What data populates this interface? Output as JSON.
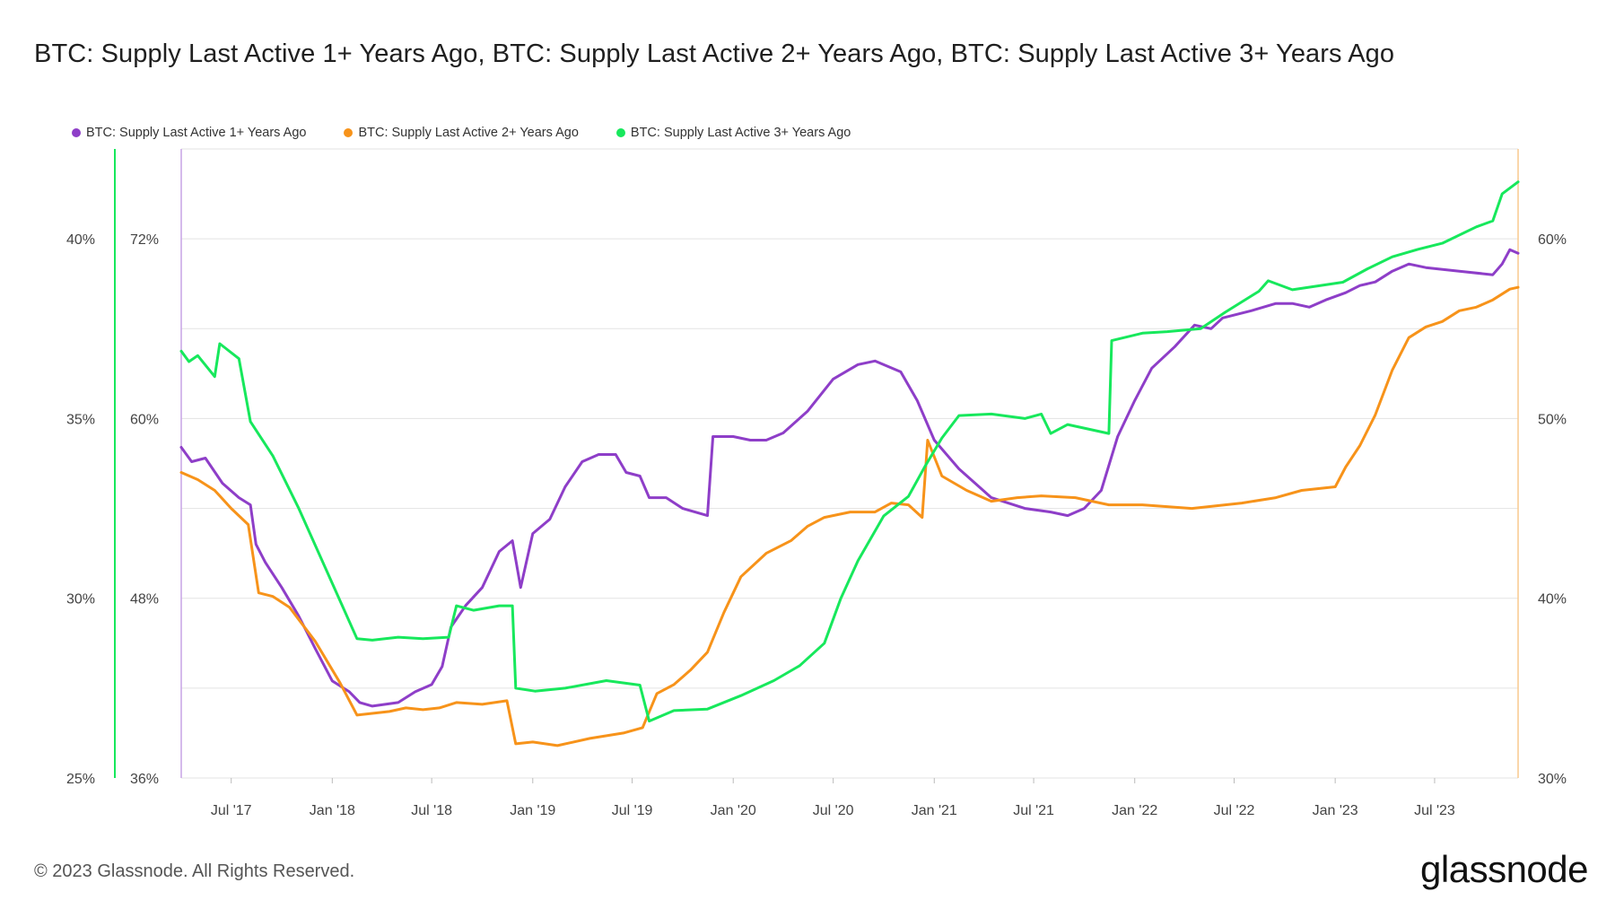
{
  "title": "BTC: Supply Last Active 1+ Years Ago, BTC: Supply Last Active 2+ Years Ago, BTC: Supply Last Active 3+ Years Ago",
  "footer": "© 2023 Glassnode. All Rights Reserved.",
  "logo": "glassnode",
  "chart_data": {
    "type": "line",
    "grid": true,
    "legend_position": "top-left",
    "x_tick_labels": [
      "Jul '17",
      "Jan '18",
      "Jul '18",
      "Jan '19",
      "Jul '19",
      "Jan '20",
      "Jul '20",
      "Jan '21",
      "Jul '21",
      "Jan '22",
      "Jul '22",
      "Jan '23",
      "Jul '23"
    ],
    "x_range": [
      "2017-04-01",
      "2023-11-30"
    ],
    "axes": {
      "left_outer": {
        "series": "BTC: Supply Last Active 1+ Years Ago",
        "ticks": [
          "25%",
          "30%",
          "35%",
          "40%"
        ],
        "range": [
          25,
          42.5
        ],
        "color": "#8e3ec8"
      },
      "left_inner": {
        "series": "BTC: Supply Last Active 3+ Years Ago",
        "ticks": [
          "36%",
          "48%",
          "60%",
          "72%"
        ],
        "range": [
          36,
          78
        ],
        "color": "#17e85c"
      },
      "right": {
        "series": "BTC: Supply Last Active 2+ Years Ago",
        "ticks": [
          "30%",
          "40%",
          "50%",
          "60%"
        ],
        "range": [
          30,
          65
        ],
        "color": "#f7931a"
      }
    },
    "series": [
      {
        "name": "BTC: Supply Last Active 1+ Years Ago",
        "color": "#8e3ec8",
        "axis": "left_outer",
        "points": [
          [
            "2017-04-01",
            34.2
          ],
          [
            "2017-04-20",
            33.8
          ],
          [
            "2017-05-15",
            33.9
          ],
          [
            "2017-06-15",
            33.2
          ],
          [
            "2017-07-15",
            32.8
          ],
          [
            "2017-08-05",
            32.6
          ],
          [
            "2017-08-15",
            31.5
          ],
          [
            "2017-09-01",
            31.0
          ],
          [
            "2017-10-01",
            30.3
          ],
          [
            "2017-11-01",
            29.5
          ],
          [
            "2017-12-01",
            28.6
          ],
          [
            "2018-01-01",
            27.7
          ],
          [
            "2018-02-01",
            27.4
          ],
          [
            "2018-02-20",
            27.1
          ],
          [
            "2018-03-15",
            27.0
          ],
          [
            "2018-05-01",
            27.1
          ],
          [
            "2018-06-01",
            27.4
          ],
          [
            "2018-07-01",
            27.6
          ],
          [
            "2018-07-20",
            28.1
          ],
          [
            "2018-08-05",
            29.2
          ],
          [
            "2018-09-01",
            29.8
          ],
          [
            "2018-10-01",
            30.3
          ],
          [
            "2018-11-01",
            31.3
          ],
          [
            "2018-11-25",
            31.6
          ],
          [
            "2018-12-10",
            30.3
          ],
          [
            "2019-01-01",
            31.8
          ],
          [
            "2019-02-01",
            32.2
          ],
          [
            "2019-03-01",
            33.1
          ],
          [
            "2019-04-01",
            33.8
          ],
          [
            "2019-05-01",
            34.0
          ],
          [
            "2019-06-01",
            34.0
          ],
          [
            "2019-06-20",
            33.5
          ],
          [
            "2019-07-15",
            33.4
          ],
          [
            "2019-08-01",
            32.8
          ],
          [
            "2019-09-01",
            32.8
          ],
          [
            "2019-10-01",
            32.5
          ],
          [
            "2019-11-15",
            32.3
          ],
          [
            "2019-11-25",
            34.5
          ],
          [
            "2020-01-01",
            34.5
          ],
          [
            "2020-02-01",
            34.4
          ],
          [
            "2020-03-01",
            34.4
          ],
          [
            "2020-04-01",
            34.6
          ],
          [
            "2020-05-15",
            35.2
          ],
          [
            "2020-07-01",
            36.1
          ],
          [
            "2020-08-15",
            36.5
          ],
          [
            "2020-09-15",
            36.6
          ],
          [
            "2020-11-01",
            36.3
          ],
          [
            "2020-12-01",
            35.5
          ],
          [
            "2021-01-01",
            34.4
          ],
          [
            "2021-02-15",
            33.6
          ],
          [
            "2021-04-15",
            32.8
          ],
          [
            "2021-06-15",
            32.5
          ],
          [
            "2021-08-01",
            32.4
          ],
          [
            "2021-09-01",
            32.3
          ],
          [
            "2021-10-01",
            32.5
          ],
          [
            "2021-11-01",
            33.0
          ],
          [
            "2021-12-01",
            34.5
          ],
          [
            "2022-01-01",
            35.5
          ],
          [
            "2022-02-01",
            36.4
          ],
          [
            "2022-03-15",
            37.0
          ],
          [
            "2022-04-20",
            37.6
          ],
          [
            "2022-05-20",
            37.5
          ],
          [
            "2022-06-10",
            37.8
          ],
          [
            "2022-08-01",
            38.0
          ],
          [
            "2022-09-15",
            38.2
          ],
          [
            "2022-10-15",
            38.2
          ],
          [
            "2022-11-15",
            38.1
          ],
          [
            "2022-12-15",
            38.3
          ],
          [
            "2023-01-20",
            38.5
          ],
          [
            "2023-02-15",
            38.7
          ],
          [
            "2023-03-15",
            38.8
          ],
          [
            "2023-04-15",
            39.1
          ],
          [
            "2023-05-15",
            39.3
          ],
          [
            "2023-06-15",
            39.2
          ],
          [
            "2023-08-15",
            39.1
          ],
          [
            "2023-10-15",
            39.0
          ],
          [
            "2023-11-01",
            39.3
          ],
          [
            "2023-11-15",
            39.7
          ],
          [
            "2023-11-30",
            39.6
          ]
        ]
      },
      {
        "name": "BTC: Supply Last Active 2+ Years Ago",
        "color": "#f7931a",
        "axis": "right",
        "points": [
          [
            "2017-04-01",
            47.0
          ],
          [
            "2017-05-01",
            46.6
          ],
          [
            "2017-06-01",
            46.0
          ],
          [
            "2017-07-01",
            45.0
          ],
          [
            "2017-08-01",
            44.1
          ],
          [
            "2017-08-20",
            40.3
          ],
          [
            "2017-09-15",
            40.1
          ],
          [
            "2017-10-15",
            39.5
          ],
          [
            "2017-12-01",
            37.6
          ],
          [
            "2018-01-15",
            35.3
          ],
          [
            "2018-02-15",
            33.5
          ],
          [
            "2018-04-15",
            33.7
          ],
          [
            "2018-05-15",
            33.9
          ],
          [
            "2018-06-15",
            33.8
          ],
          [
            "2018-07-15",
            33.9
          ],
          [
            "2018-08-15",
            34.2
          ],
          [
            "2018-10-01",
            34.1
          ],
          [
            "2018-11-15",
            34.3
          ],
          [
            "2018-12-01",
            31.9
          ],
          [
            "2019-01-01",
            32.0
          ],
          [
            "2019-02-15",
            31.8
          ],
          [
            "2019-04-15",
            32.2
          ],
          [
            "2019-06-15",
            32.5
          ],
          [
            "2019-07-20",
            32.8
          ],
          [
            "2019-08-15",
            34.7
          ],
          [
            "2019-09-15",
            35.2
          ],
          [
            "2019-10-15",
            36.0
          ],
          [
            "2019-11-15",
            37.0
          ],
          [
            "2019-12-15",
            39.2
          ],
          [
            "2020-01-15",
            41.2
          ],
          [
            "2020-03-01",
            42.5
          ],
          [
            "2020-04-15",
            43.2
          ],
          [
            "2020-05-15",
            44.0
          ],
          [
            "2020-06-15",
            44.5
          ],
          [
            "2020-08-01",
            44.8
          ],
          [
            "2020-09-15",
            44.8
          ],
          [
            "2020-10-15",
            45.3
          ],
          [
            "2020-11-15",
            45.2
          ],
          [
            "2020-12-10",
            44.5
          ],
          [
            "2020-12-20",
            48.8
          ],
          [
            "2021-01-15",
            46.8
          ],
          [
            "2021-03-01",
            46.0
          ],
          [
            "2021-04-15",
            45.4
          ],
          [
            "2021-06-01",
            45.6
          ],
          [
            "2021-07-15",
            45.7
          ],
          [
            "2021-09-15",
            45.6
          ],
          [
            "2021-11-15",
            45.2
          ],
          [
            "2022-01-15",
            45.2
          ],
          [
            "2022-04-15",
            45.0
          ],
          [
            "2022-07-15",
            45.3
          ],
          [
            "2022-09-15",
            45.6
          ],
          [
            "2022-11-01",
            46.0
          ],
          [
            "2023-01-01",
            46.2
          ],
          [
            "2023-01-20",
            47.3
          ],
          [
            "2023-02-15",
            48.5
          ],
          [
            "2023-03-15",
            50.2
          ],
          [
            "2023-04-15",
            52.7
          ],
          [
            "2023-05-15",
            54.5
          ],
          [
            "2023-06-15",
            55.1
          ],
          [
            "2023-07-15",
            55.4
          ],
          [
            "2023-08-15",
            56.0
          ],
          [
            "2023-09-15",
            56.2
          ],
          [
            "2023-10-15",
            56.6
          ],
          [
            "2023-11-15",
            57.2
          ],
          [
            "2023-11-30",
            57.3
          ]
        ]
      },
      {
        "name": "BTC: Supply Last Active 3+ Years Ago",
        "color": "#17e85c",
        "axis": "left_inner",
        "points": [
          [
            "2017-04-01",
            64.5
          ],
          [
            "2017-04-15",
            63.8
          ],
          [
            "2017-05-01",
            64.2
          ],
          [
            "2017-06-01",
            62.8
          ],
          [
            "2017-06-10",
            65.0
          ],
          [
            "2017-07-15",
            64.0
          ],
          [
            "2017-08-05",
            59.8
          ],
          [
            "2017-09-15",
            57.5
          ],
          [
            "2017-11-01",
            54.0
          ],
          [
            "2018-01-01",
            49.0
          ],
          [
            "2018-02-15",
            45.3
          ],
          [
            "2018-03-15",
            45.2
          ],
          [
            "2018-05-01",
            45.4
          ],
          [
            "2018-06-15",
            45.3
          ],
          [
            "2018-08-01",
            45.4
          ],
          [
            "2018-08-15",
            47.5
          ],
          [
            "2018-09-15",
            47.2
          ],
          [
            "2018-11-01",
            47.5
          ],
          [
            "2018-11-25",
            47.5
          ],
          [
            "2018-12-01",
            42.0
          ],
          [
            "2019-01-05",
            41.8
          ],
          [
            "2019-03-01",
            42.0
          ],
          [
            "2019-05-15",
            42.5
          ],
          [
            "2019-07-15",
            42.2
          ],
          [
            "2019-08-01",
            39.8
          ],
          [
            "2019-09-15",
            40.5
          ],
          [
            "2019-11-15",
            40.6
          ],
          [
            "2020-01-15",
            41.5
          ],
          [
            "2020-03-15",
            42.5
          ],
          [
            "2020-05-01",
            43.5
          ],
          [
            "2020-06-15",
            45.0
          ],
          [
            "2020-07-15",
            48.0
          ],
          [
            "2020-08-15",
            50.5
          ],
          [
            "2020-10-01",
            53.5
          ],
          [
            "2020-11-15",
            54.8
          ],
          [
            "2020-12-15",
            56.8
          ],
          [
            "2021-01-15",
            58.7
          ],
          [
            "2021-02-15",
            60.2
          ],
          [
            "2021-04-15",
            60.3
          ],
          [
            "2021-06-15",
            60.0
          ],
          [
            "2021-07-15",
            60.3
          ],
          [
            "2021-08-01",
            59.0
          ],
          [
            "2021-09-01",
            59.6
          ],
          [
            "2021-11-15",
            59.0
          ],
          [
            "2021-11-20",
            65.2
          ],
          [
            "2022-01-15",
            65.7
          ],
          [
            "2022-03-01",
            65.8
          ],
          [
            "2022-05-01",
            66.0
          ],
          [
            "2022-06-15",
            67.1
          ],
          [
            "2022-08-15",
            68.5
          ],
          [
            "2022-09-01",
            69.2
          ],
          [
            "2022-10-15",
            68.6
          ],
          [
            "2023-01-15",
            69.1
          ],
          [
            "2023-03-01",
            70.0
          ],
          [
            "2023-04-15",
            70.8
          ],
          [
            "2023-06-01",
            71.3
          ],
          [
            "2023-07-15",
            71.7
          ],
          [
            "2023-09-15",
            72.8
          ],
          [
            "2023-10-15",
            73.2
          ],
          [
            "2023-11-01",
            75.0
          ],
          [
            "2023-11-30",
            75.8
          ]
        ]
      }
    ]
  }
}
